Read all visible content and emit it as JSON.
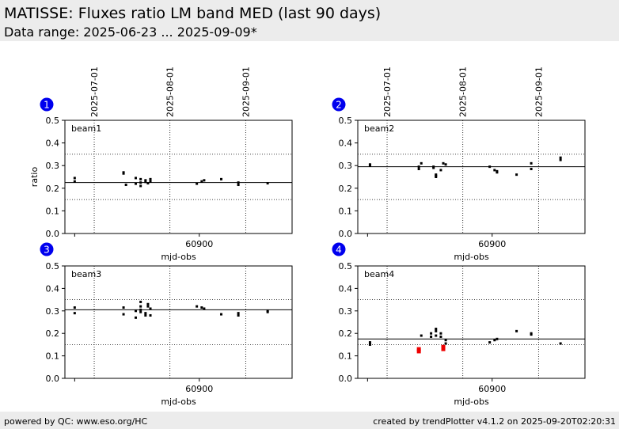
{
  "header": {
    "title": "MATISSE: Fluxes ratio LM band MED (last 90 days)",
    "subtitle": "Data range: 2025-06-23 ... 2025-09-09*"
  },
  "footer": {
    "left": "powered by QC: www.eso.org/HC",
    "right": "created by trendPlotter v4.1.2 on 2025-09-20T02:20:31"
  },
  "colors": {
    "header_bg": "#ececec",
    "badge": "#0000ee",
    "points": "#000000",
    "outlier": "#ee0000"
  },
  "chart_data": [
    {
      "type": "scatter",
      "badge": "1",
      "label": "beam1",
      "xlabel": "mjd-obs",
      "ylabel": "ratio",
      "ylim": [
        0,
        0.5
      ],
      "yticks": [
        "0.0",
        "0.1",
        "0.2",
        "0.3",
        "0.4",
        "0.5"
      ],
      "xtick_value": 60900,
      "xtick_label": "60900",
      "date_ticks": [
        {
          "mjd": 60857,
          "label": "2025-07-01"
        },
        {
          "mjd": 60888,
          "label": "2025-08-01"
        },
        {
          "mjd": 60919,
          "label": "2025-09-01"
        }
      ],
      "reference": 0.225,
      "limits": [
        0.15,
        0.35
      ],
      "points": [
        [
          60849,
          0.245
        ],
        [
          60849,
          0.23
        ],
        [
          60869,
          0.27
        ],
        [
          60869,
          0.265
        ],
        [
          60870,
          0.215
        ],
        [
          60874,
          0.245
        ],
        [
          60874,
          0.22
        ],
        [
          60876,
          0.24
        ],
        [
          60876,
          0.225
        ],
        [
          60876,
          0.21
        ],
        [
          60878,
          0.235
        ],
        [
          60878,
          0.228
        ],
        [
          60879,
          0.222
        ],
        [
          60880,
          0.24
        ],
        [
          60880,
          0.23
        ],
        [
          60899,
          0.22
        ],
        [
          60901,
          0.23
        ],
        [
          60902,
          0.235
        ],
        [
          60909,
          0.24
        ],
        [
          60916,
          0.225
        ],
        [
          60916,
          0.215
        ],
        [
          60928,
          0.222
        ]
      ],
      "outliers": []
    },
    {
      "type": "scatter",
      "badge": "2",
      "label": "beam2",
      "xlabel": "mjd-obs",
      "ylabel": "",
      "ylim": [
        0,
        0.5
      ],
      "yticks": [
        "0.0",
        "0.1",
        "0.2",
        "0.3",
        "0.4",
        "0.5"
      ],
      "xtick_value": 60900,
      "xtick_label": "60900",
      "date_ticks": [
        {
          "mjd": 60857,
          "label": "2025-07-01"
        },
        {
          "mjd": 60888,
          "label": "2025-08-01"
        },
        {
          "mjd": 60919,
          "label": "2025-09-01"
        }
      ],
      "reference": 0.295,
      "limits": [
        0.15,
        0.35
      ],
      "points": [
        [
          60850,
          0.305
        ],
        [
          60850,
          0.3
        ],
        [
          60870,
          0.295
        ],
        [
          60870,
          0.285
        ],
        [
          60871,
          0.31
        ],
        [
          60876,
          0.295
        ],
        [
          60876,
          0.29
        ],
        [
          60877,
          0.26
        ],
        [
          60877,
          0.255
        ],
        [
          60877,
          0.25
        ],
        [
          60879,
          0.28
        ],
        [
          60880,
          0.31
        ],
        [
          60881,
          0.305
        ],
        [
          60899,
          0.295
        ],
        [
          60901,
          0.28
        ],
        [
          60902,
          0.275
        ],
        [
          60902,
          0.27
        ],
        [
          60910,
          0.26
        ],
        [
          60916,
          0.31
        ],
        [
          60916,
          0.285
        ],
        [
          60928,
          0.335
        ],
        [
          60928,
          0.325
        ]
      ],
      "outliers": []
    },
    {
      "type": "scatter",
      "badge": "3",
      "label": "beam3",
      "xlabel": "mjd-obs",
      "ylabel": "",
      "ylim": [
        0,
        0.5
      ],
      "yticks": [
        "0.0",
        "0.1",
        "0.2",
        "0.3",
        "0.4",
        "0.5"
      ],
      "xtick_value": 60900,
      "xtick_label": "60900",
      "date_ticks": [
        {
          "mjd": 60857,
          "label": "2025-07-01"
        },
        {
          "mjd": 60888,
          "label": "2025-08-01"
        },
        {
          "mjd": 60919,
          "label": "2025-09-01"
        }
      ],
      "reference": 0.305,
      "limits": [
        0.15,
        0.35
      ],
      "points": [
        [
          60849,
          0.315
        ],
        [
          60849,
          0.29
        ],
        [
          60869,
          0.315
        ],
        [
          60869,
          0.285
        ],
        [
          60874,
          0.3
        ],
        [
          60874,
          0.27
        ],
        [
          60876,
          0.34
        ],
        [
          60876,
          0.32
        ],
        [
          60876,
          0.305
        ],
        [
          60876,
          0.295
        ],
        [
          60878,
          0.29
        ],
        [
          60878,
          0.28
        ],
        [
          60879,
          0.33
        ],
        [
          60879,
          0.32
        ],
        [
          60880,
          0.31
        ],
        [
          60880,
          0.28
        ],
        [
          60899,
          0.32
        ],
        [
          60901,
          0.315
        ],
        [
          60902,
          0.31
        ],
        [
          60909,
          0.285
        ],
        [
          60916,
          0.29
        ],
        [
          60916,
          0.28
        ],
        [
          60928,
          0.3
        ],
        [
          60928,
          0.295
        ]
      ],
      "outliers": []
    },
    {
      "type": "scatter",
      "badge": "4",
      "label": "beam4",
      "xlabel": "mjd-obs",
      "ylabel": "",
      "ylim": [
        0,
        0.5
      ],
      "yticks": [
        "0.0",
        "0.1",
        "0.2",
        "0.3",
        "0.4",
        "0.5"
      ],
      "xtick_value": 60900,
      "xtick_label": "60900",
      "date_ticks": [
        {
          "mjd": 60857,
          "label": "2025-07-01"
        },
        {
          "mjd": 60888,
          "label": "2025-08-01"
        },
        {
          "mjd": 60919,
          "label": "2025-09-01"
        }
      ],
      "reference": 0.175,
      "limits": [
        0.15,
        0.35
      ],
      "points": [
        [
          60850,
          0.16
        ],
        [
          60850,
          0.15
        ],
        [
          60871,
          0.19
        ],
        [
          60875,
          0.2
        ],
        [
          60875,
          0.185
        ],
        [
          60877,
          0.22
        ],
        [
          60877,
          0.21
        ],
        [
          60877,
          0.19
        ],
        [
          60879,
          0.2
        ],
        [
          60879,
          0.185
        ],
        [
          60881,
          0.17
        ],
        [
          60881,
          0.155
        ],
        [
          60899,
          0.16
        ],
        [
          60901,
          0.17
        ],
        [
          60902,
          0.175
        ],
        [
          60910,
          0.21
        ],
        [
          60916,
          0.2
        ],
        [
          60916,
          0.195
        ],
        [
          60928,
          0.155
        ]
      ],
      "outliers": [
        [
          60870,
          0.13
        ],
        [
          60870,
          0.12
        ],
        [
          60880,
          0.14
        ],
        [
          60880,
          0.13
        ]
      ]
    }
  ]
}
